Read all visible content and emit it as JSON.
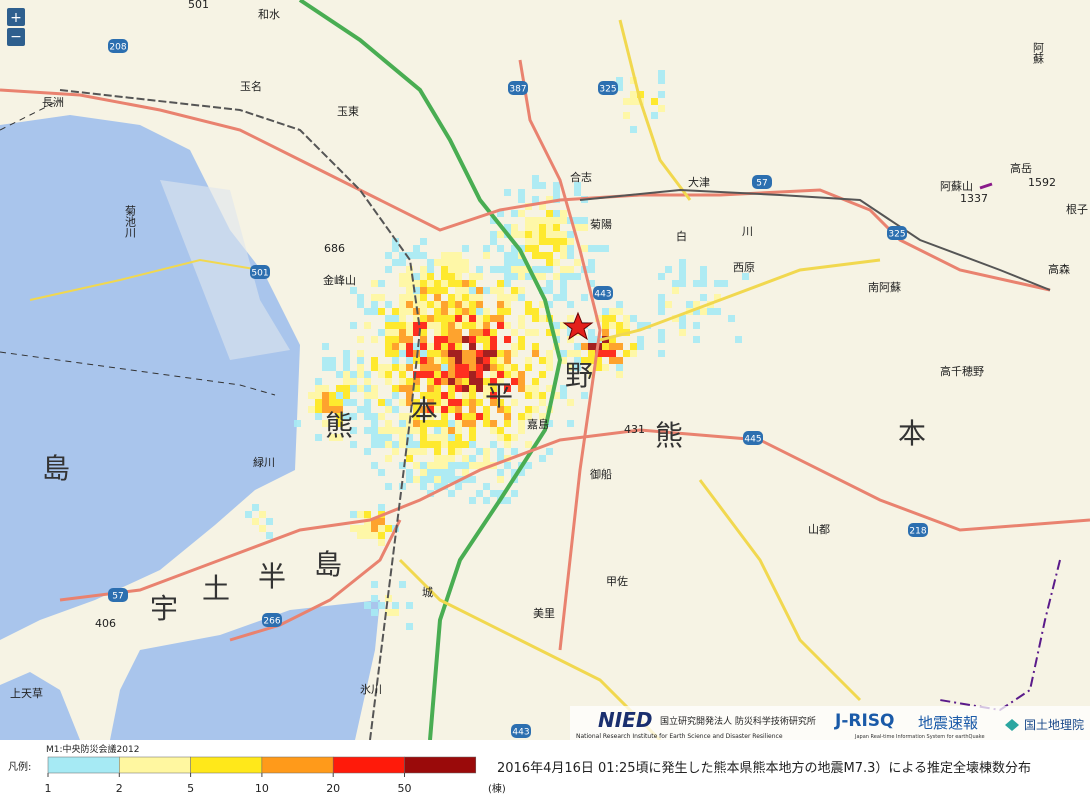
{
  "controls": {
    "zoom_in": "+",
    "zoom_out": "−"
  },
  "places": [
    "和水",
    "玉名",
    "長洲",
    "玉東",
    "合志",
    "大津",
    "菊陽",
    "白",
    "川",
    "西原",
    "南阿蘇",
    "高森",
    "阿蘇",
    "阿蘇山",
    "1337",
    "高岳",
    "1592",
    "金峰山",
    "686",
    "菊池川",
    "緑川",
    "熊",
    "本",
    "平",
    "野",
    "熊",
    "本",
    "島",
    "宇",
    "土",
    "半",
    "島",
    "嘉島",
    "御船",
    "甲佐",
    "美里",
    "山都",
    "高千穂野",
    "431",
    "406",
    "上天草",
    "氷川",
    "城",
    "根子",
    "501"
  ],
  "routes": [
    "208",
    "387",
    "325",
    "57",
    "325",
    "501",
    "443",
    "445",
    "218",
    "57",
    "266",
    "443"
  ],
  "logos": {
    "nied": "NIED",
    "nied_jp": "国立研究開発法人 防災科学技術研究所",
    "nied_en": "National Research Institute for Earth Science and Disaster Resilience",
    "jrisq": "J-RISQ",
    "jrisq_sub": "地震速報",
    "jrisq_en": "Japan Real-time Information System for earthQuake",
    "gsi": "国土地理院"
  },
  "legend": {
    "source": "M1:中央防災会議2012",
    "label": "凡例:",
    "unit": "(棟)",
    "ticks": [
      1,
      2,
      5,
      10,
      20,
      50
    ],
    "colors": [
      "#a6eaf4",
      "#fff7a0",
      "#ffe81a",
      "#ff9a1a",
      "#ff1a0a",
      "#9a0a0a"
    ]
  },
  "caption": "2016年4月16日 01:25頃に発生した熊本県熊本地方の地震M7.3）による推定全壊棟数分布"
}
